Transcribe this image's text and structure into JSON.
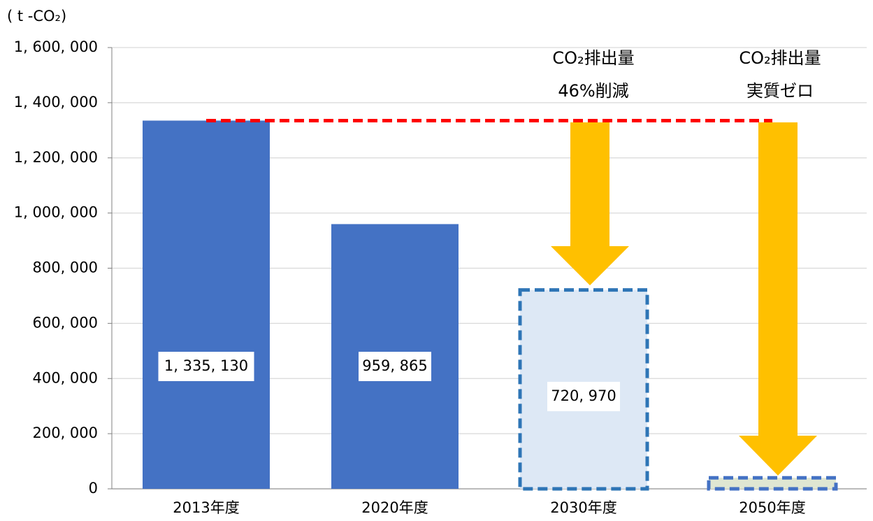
{
  "chart_data": {
    "type": "bar",
    "ylabel": "( t -CO₂)",
    "categories": [
      "2013年度",
      "2020年度",
      "2030年度",
      "2050年度"
    ],
    "values": [
      1335130,
      959865,
      720970,
      40000
    ],
    "value_labels": [
      "1, 335, 130",
      "959, 865",
      "720, 970",
      null
    ],
    "bar_colors": [
      "#4472c4",
      "#4472c4",
      "#dde8f5",
      "#dfe6d2"
    ],
    "outline_colors": [
      null,
      null,
      "#2e75b6",
      "#4472c4"
    ],
    "ylim": [
      0,
      1600000
    ],
    "yticks": [
      0,
      {
        "value": 200000,
        "label": "200, 000"
      },
      {
        "value": 400000,
        "label": "400, 000"
      },
      {
        "value": 600000,
        "label": "600, 000"
      },
      {
        "value": 800000,
        "label": "800, 000"
      },
      {
        "value": 1000000,
        "label": "1, 000, 000"
      },
      {
        "value": 1200000,
        "label": "1, 200, 000"
      },
      {
        "value": 1400000,
        "label": "1, 400, 000"
      },
      {
        "value": 1600000,
        "label": "1, 600, 000"
      }
    ],
    "grid": true,
    "annotations": [
      {
        "lines": [
          "CO₂排出量",
          "46%削減"
        ]
      },
      {
        "lines": [
          "CO₂排出量",
          "実質ゼロ"
        ]
      }
    ]
  }
}
